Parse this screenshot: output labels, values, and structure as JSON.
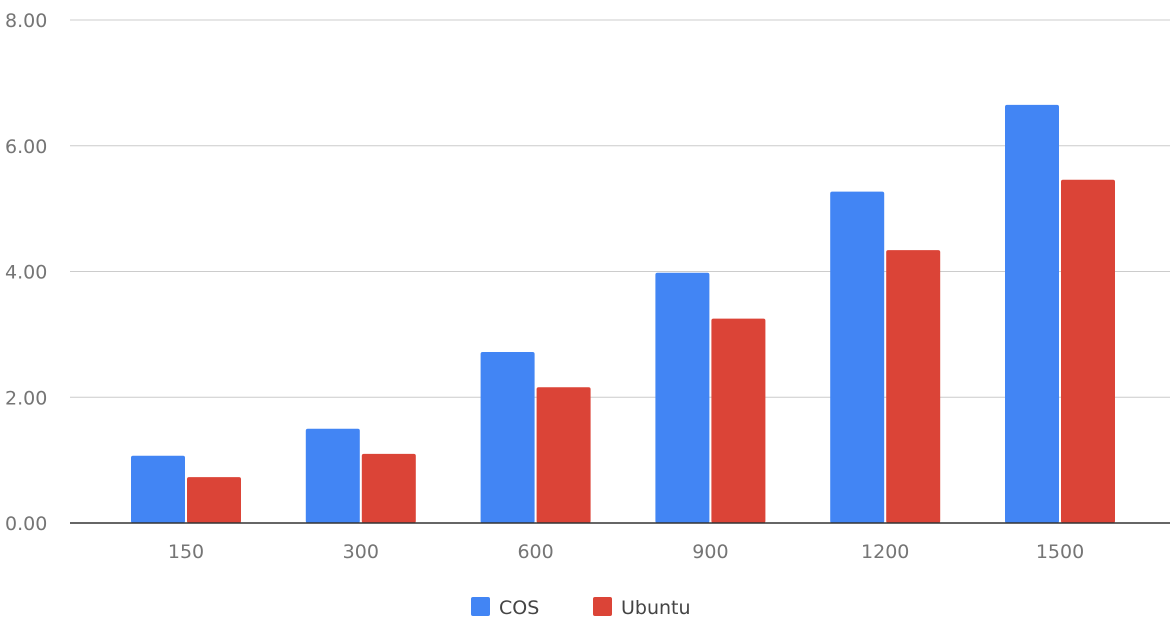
{
  "chart_data": {
    "type": "bar",
    "title": "",
    "xlabel": "",
    "ylabel": "",
    "categories": [
      "150",
      "300",
      "600",
      "900",
      "1200",
      "1500"
    ],
    "series": [
      {
        "name": "COS",
        "color": "#4285f4",
        "values": [
          1.07,
          1.5,
          2.72,
          3.98,
          5.27,
          6.65
        ]
      },
      {
        "name": "Ubuntu",
        "color": "#db4437",
        "values": [
          0.73,
          1.1,
          2.16,
          3.25,
          4.34,
          5.46
        ]
      }
    ],
    "ylim": [
      0,
      8
    ],
    "yticks": [
      "0.00",
      "2.00",
      "4.00",
      "6.00",
      "8.00"
    ],
    "grid": true,
    "legend_position": "bottom"
  }
}
